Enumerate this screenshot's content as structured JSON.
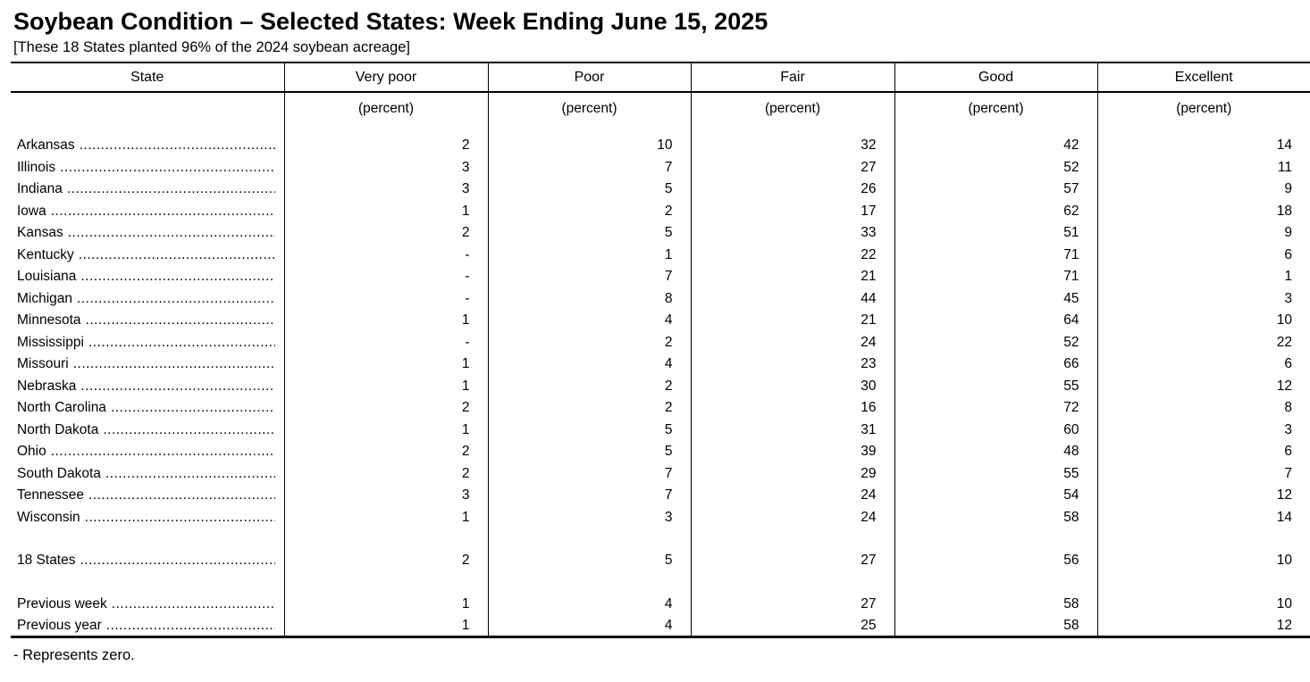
{
  "title": "Soybean Condition – Selected States: Week Ending June 15, 2025",
  "subtitle": "[These 18 States planted 96% of the 2024 soybean acreage]",
  "footnote": "- Represents zero.",
  "table": {
    "columns": [
      "State",
      "Very poor",
      "Poor",
      "Fair",
      "Good",
      "Excellent"
    ],
    "unit_label": "(percent)",
    "rows": [
      {
        "state": "Arkansas",
        "values": [
          "2",
          "10",
          "32",
          "42",
          "14"
        ]
      },
      {
        "state": "Illinois",
        "values": [
          "3",
          "7",
          "27",
          "52",
          "11"
        ]
      },
      {
        "state": "Indiana",
        "values": [
          "3",
          "5",
          "26",
          "57",
          "9"
        ]
      },
      {
        "state": "Iowa",
        "values": [
          "1",
          "2",
          "17",
          "62",
          "18"
        ]
      },
      {
        "state": "Kansas",
        "values": [
          "2",
          "5",
          "33",
          "51",
          "9"
        ]
      },
      {
        "state": "Kentucky",
        "values": [
          "-",
          "1",
          "22",
          "71",
          "6"
        ]
      },
      {
        "state": "Louisiana",
        "values": [
          "-",
          "7",
          "21",
          "71",
          "1"
        ]
      },
      {
        "state": "Michigan",
        "values": [
          "-",
          "8",
          "44",
          "45",
          "3"
        ]
      },
      {
        "state": "Minnesota",
        "values": [
          "1",
          "4",
          "21",
          "64",
          "10"
        ]
      },
      {
        "state": "Mississippi",
        "values": [
          "-",
          "2",
          "24",
          "52",
          "22"
        ]
      },
      {
        "state": "Missouri",
        "values": [
          "1",
          "4",
          "23",
          "66",
          "6"
        ]
      },
      {
        "state": "Nebraska",
        "values": [
          "1",
          "2",
          "30",
          "55",
          "12"
        ]
      },
      {
        "state": "North Carolina",
        "values": [
          "2",
          "2",
          "16",
          "72",
          "8"
        ]
      },
      {
        "state": "North Dakota",
        "values": [
          "1",
          "5",
          "31",
          "60",
          "3"
        ]
      },
      {
        "state": "Ohio",
        "values": [
          "2",
          "5",
          "39",
          "48",
          "6"
        ]
      },
      {
        "state": "South Dakota",
        "values": [
          "2",
          "7",
          "29",
          "55",
          "7"
        ]
      },
      {
        "state": "Tennessee",
        "values": [
          "3",
          "7",
          "24",
          "54",
          "12"
        ]
      },
      {
        "state": "Wisconsin",
        "values": [
          "1",
          "3",
          "24",
          "58",
          "14"
        ]
      }
    ],
    "total_row": {
      "state": "18 States",
      "values": [
        "2",
        "5",
        "27",
        "56",
        "10"
      ]
    },
    "comparison_rows": [
      {
        "state": "Previous week",
        "values": [
          "1",
          "4",
          "27",
          "58",
          "10"
        ]
      },
      {
        "state": "Previous year",
        "values": [
          "1",
          "4",
          "25",
          "58",
          "12"
        ]
      }
    ]
  }
}
